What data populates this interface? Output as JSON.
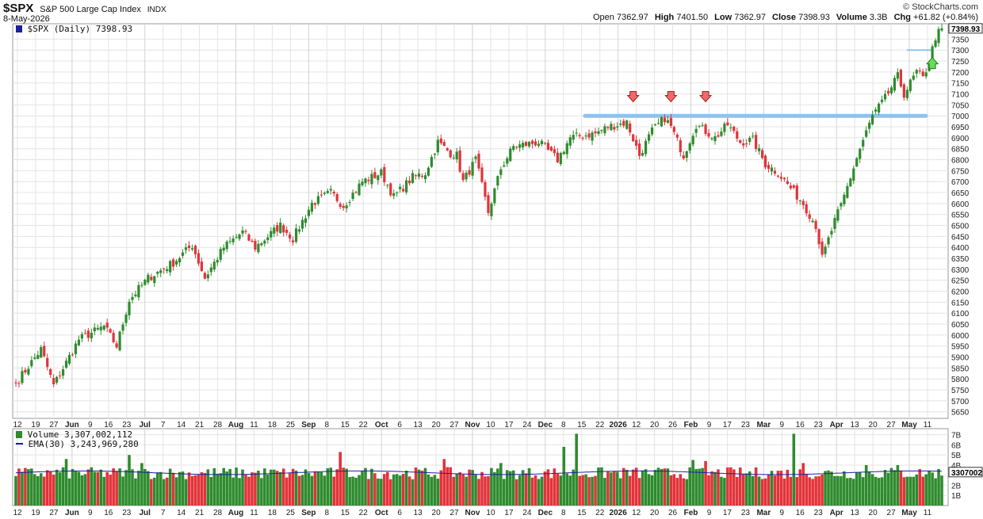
{
  "header": {
    "symbol": "$SPX",
    "name": "S&P 500 Large Cap Index",
    "exchange": "INDX",
    "date": "8-May-2026",
    "brand": "© StockCharts.com",
    "ohlc": [
      {
        "label": "Open",
        "value": "7362.97"
      },
      {
        "label": "High",
        "value": "7401.50"
      },
      {
        "label": "Low",
        "value": "7362.97"
      },
      {
        "label": "Close",
        "value": "7398.93"
      },
      {
        "label": "Volume",
        "value": "3.3B"
      },
      {
        "label": "Chg",
        "value": "+61.82 (+0.84%)"
      }
    ]
  },
  "colors": {
    "up": "#2e8b2e",
    "down": "#e2333a",
    "grid": "#e4e4e4",
    "resistance": "#8ec3f0",
    "ema": "#1e1ea0",
    "down_arrow": "#f06a6a",
    "up_arrow": "#66dd55"
  },
  "chart_data": [
    {
      "type": "candlestick",
      "legend": "$SPX (Daily) 7398.93",
      "last_label": "7398.93",
      "ylim": [
        5620,
        7420
      ],
      "y_ticks": [
        5650,
        5700,
        5750,
        5800,
        5850,
        5900,
        5950,
        6000,
        6050,
        6100,
        6150,
        6200,
        6250,
        6300,
        6350,
        6400,
        6450,
        6500,
        6550,
        6600,
        6650,
        6700,
        6750,
        6800,
        6850,
        6900,
        6950,
        7000,
        7050,
        7100,
        7150,
        7200,
        7250,
        7300,
        7350
      ],
      "x_ticks": [
        "12",
        "19",
        "27",
        "Jun",
        "9",
        "16",
        "23",
        "Jul",
        "7",
        "14",
        "21",
        "28",
        "Aug",
        "11",
        "18",
        "25",
        "Sep",
        "8",
        "15",
        "22",
        "Oct",
        "6",
        "13",
        "20",
        "27",
        "Nov",
        "10",
        "17",
        "24",
        "Dec",
        "8",
        "15",
        "22",
        "2026",
        "12",
        "20",
        "26",
        "Feb",
        "9",
        "17",
        "23",
        "Mar",
        "9",
        "16",
        "23",
        "Apr",
        "13",
        "20",
        "27",
        "May",
        "11"
      ],
      "x_ticks_bold": [
        "Jun",
        "Jul",
        "Aug",
        "Sep",
        "Oct",
        "Nov",
        "Dec",
        "2026",
        "Feb",
        "Mar",
        "Apr",
        "May"
      ],
      "anchors": [
        [
          0,
          5780
        ],
        [
          8,
          5935
        ],
        [
          12,
          5770
        ],
        [
          20,
          5980
        ],
        [
          28,
          6040
        ],
        [
          32,
          5950
        ],
        [
          36,
          6160
        ],
        [
          42,
          6260
        ],
        [
          50,
          6330
        ],
        [
          56,
          6410
        ],
        [
          60,
          6260
        ],
        [
          66,
          6400
        ],
        [
          72,
          6470
        ],
        [
          76,
          6400
        ],
        [
          84,
          6500
        ],
        [
          88,
          6440
        ],
        [
          94,
          6600
        ],
        [
          100,
          6650
        ],
        [
          104,
          6590
        ],
        [
          110,
          6700
        ],
        [
          116,
          6740
        ],
        [
          120,
          6630
        ],
        [
          126,
          6720
        ],
        [
          130,
          6740
        ],
        [
          134,
          6880
        ],
        [
          138,
          6830
        ],
        [
          140,
          6820
        ],
        [
          142,
          6700
        ],
        [
          146,
          6800
        ],
        [
          150,
          6560
        ],
        [
          154,
          6760
        ],
        [
          158,
          6860
        ],
        [
          166,
          6880
        ],
        [
          172,
          6800
        ],
        [
          176,
          6900
        ],
        [
          184,
          6920
        ],
        [
          188,
          6950
        ],
        [
          194,
          6970
        ],
        [
          198,
          6820
        ],
        [
          202,
          6930
        ],
        [
          206,
          6990
        ],
        [
          208,
          6950
        ],
        [
          212,
          6820
        ],
        [
          216,
          6960
        ],
        [
          222,
          6900
        ],
        [
          226,
          6960
        ],
        [
          230,
          6880
        ],
        [
          234,
          6890
        ],
        [
          238,
          6780
        ],
        [
          242,
          6740
        ],
        [
          246,
          6670
        ],
        [
          250,
          6600
        ],
        [
          254,
          6500
        ],
        [
          256,
          6350
        ],
        [
          260,
          6520
        ],
        [
          262,
          6590
        ],
        [
          268,
          6850
        ],
        [
          272,
          7000
        ],
        [
          276,
          7080
        ],
        [
          280,
          7180
        ],
        [
          282,
          7100
        ],
        [
          286,
          7200
        ],
        [
          288,
          7170
        ],
        [
          290,
          7250
        ],
        [
          292,
          7360
        ],
        [
          294,
          7399
        ]
      ],
      "resistance_level": 7000,
      "support_level": 7300,
      "down_markers": [
        196,
        208,
        219
      ],
      "up_marker": 291
    },
    {
      "type": "bar",
      "title": "Volume",
      "legend_volume": "Volume 3,307,002,112",
      "legend_ema": "EMA(30) 3,243,969,280",
      "last_label": "3307002",
      "ylim": [
        0,
        7.6
      ],
      "y_ticks": [
        {
          "v": 1,
          "t": "1B"
        },
        {
          "v": 2,
          "t": "2B"
        },
        {
          "v": 4,
          "t": "4B"
        },
        {
          "v": 5,
          "t": "5B"
        },
        {
          "v": 6,
          "t": "6B"
        },
        {
          "v": 7,
          "t": "7B"
        }
      ],
      "ema_level": 3.24,
      "spikes": [
        [
          16,
          4.6
        ],
        [
          36,
          5.0
        ],
        [
          40,
          4.2
        ],
        [
          103,
          5.3
        ],
        [
          136,
          4.6
        ],
        [
          154,
          4.2
        ],
        [
          174,
          5.8
        ],
        [
          178,
          7.1
        ],
        [
          215,
          4.5
        ],
        [
          219,
          4.4
        ],
        [
          247,
          7.1
        ],
        [
          250,
          4.2
        ],
        [
          270,
          4.0
        ],
        [
          280,
          4.0
        ]
      ]
    }
  ]
}
